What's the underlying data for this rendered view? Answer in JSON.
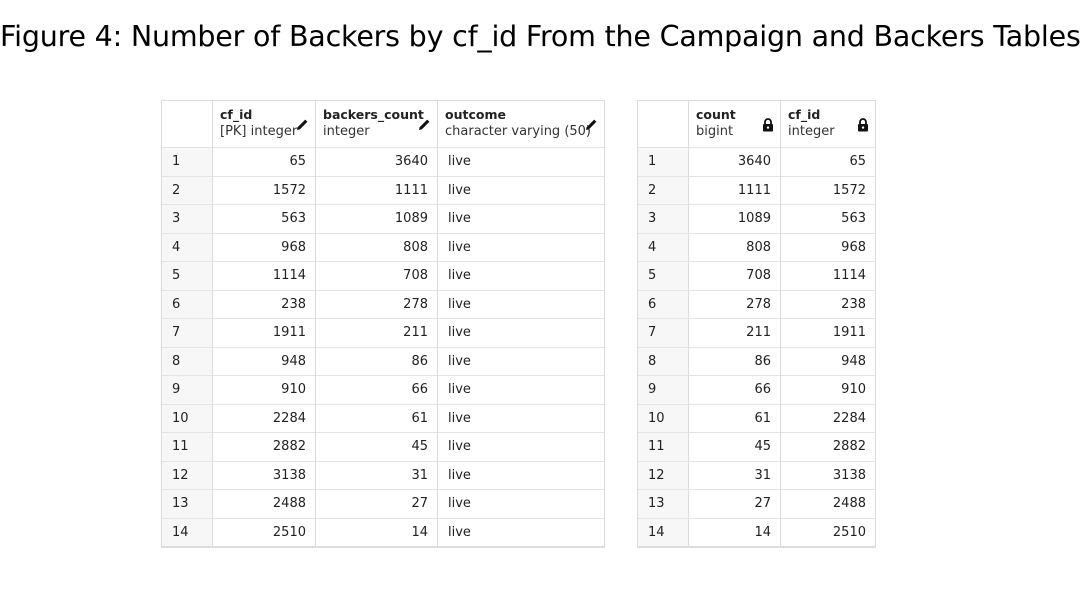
{
  "figure": {
    "title": "Figure 4: Number of Backers by cf_id From the Campaign and Backers Tables"
  },
  "left_table": {
    "columns": [
      {
        "name": "cf_id",
        "type": "[PK] integer",
        "icon": "pencil-icon"
      },
      {
        "name": "backers_count",
        "type": "integer",
        "icon": "pencil-icon"
      },
      {
        "name": "outcome",
        "type": "character varying (50)",
        "icon": "pencil-icon"
      }
    ],
    "rows": [
      {
        "n": "1",
        "cf_id": "65",
        "backers_count": "3640",
        "outcome": "live"
      },
      {
        "n": "2",
        "cf_id": "1572",
        "backers_count": "1111",
        "outcome": "live"
      },
      {
        "n": "3",
        "cf_id": "563",
        "backers_count": "1089",
        "outcome": "live"
      },
      {
        "n": "4",
        "cf_id": "968",
        "backers_count": "808",
        "outcome": "live"
      },
      {
        "n": "5",
        "cf_id": "1114",
        "backers_count": "708",
        "outcome": "live"
      },
      {
        "n": "6",
        "cf_id": "238",
        "backers_count": "278",
        "outcome": "live"
      },
      {
        "n": "7",
        "cf_id": "1911",
        "backers_count": "211",
        "outcome": "live"
      },
      {
        "n": "8",
        "cf_id": "948",
        "backers_count": "86",
        "outcome": "live"
      },
      {
        "n": "9",
        "cf_id": "910",
        "backers_count": "66",
        "outcome": "live"
      },
      {
        "n": "10",
        "cf_id": "2284",
        "backers_count": "61",
        "outcome": "live"
      },
      {
        "n": "11",
        "cf_id": "2882",
        "backers_count": "45",
        "outcome": "live"
      },
      {
        "n": "12",
        "cf_id": "3138",
        "backers_count": "31",
        "outcome": "live"
      },
      {
        "n": "13",
        "cf_id": "2488",
        "backers_count": "27",
        "outcome": "live"
      },
      {
        "n": "14",
        "cf_id": "2510",
        "backers_count": "14",
        "outcome": "live"
      }
    ]
  },
  "right_table": {
    "columns": [
      {
        "name": "count",
        "type": "bigint",
        "icon": "lock-icon"
      },
      {
        "name": "cf_id",
        "type": "integer",
        "icon": "lock-icon"
      }
    ],
    "rows": [
      {
        "n": "1",
        "count": "3640",
        "cf_id": "65"
      },
      {
        "n": "2",
        "count": "1111",
        "cf_id": "1572"
      },
      {
        "n": "3",
        "count": "1089",
        "cf_id": "563"
      },
      {
        "n": "4",
        "count": "808",
        "cf_id": "968"
      },
      {
        "n": "5",
        "count": "708",
        "cf_id": "1114"
      },
      {
        "n": "6",
        "count": "278",
        "cf_id": "238"
      },
      {
        "n": "7",
        "count": "211",
        "cf_id": "1911"
      },
      {
        "n": "8",
        "count": "86",
        "cf_id": "948"
      },
      {
        "n": "9",
        "count": "66",
        "cf_id": "910"
      },
      {
        "n": "10",
        "count": "61",
        "cf_id": "2284"
      },
      {
        "n": "11",
        "count": "45",
        "cf_id": "2882"
      },
      {
        "n": "12",
        "count": "31",
        "cf_id": "3138"
      },
      {
        "n": "13",
        "count": "27",
        "cf_id": "2488"
      },
      {
        "n": "14",
        "count": "14",
        "cf_id": "2510"
      }
    ]
  }
}
